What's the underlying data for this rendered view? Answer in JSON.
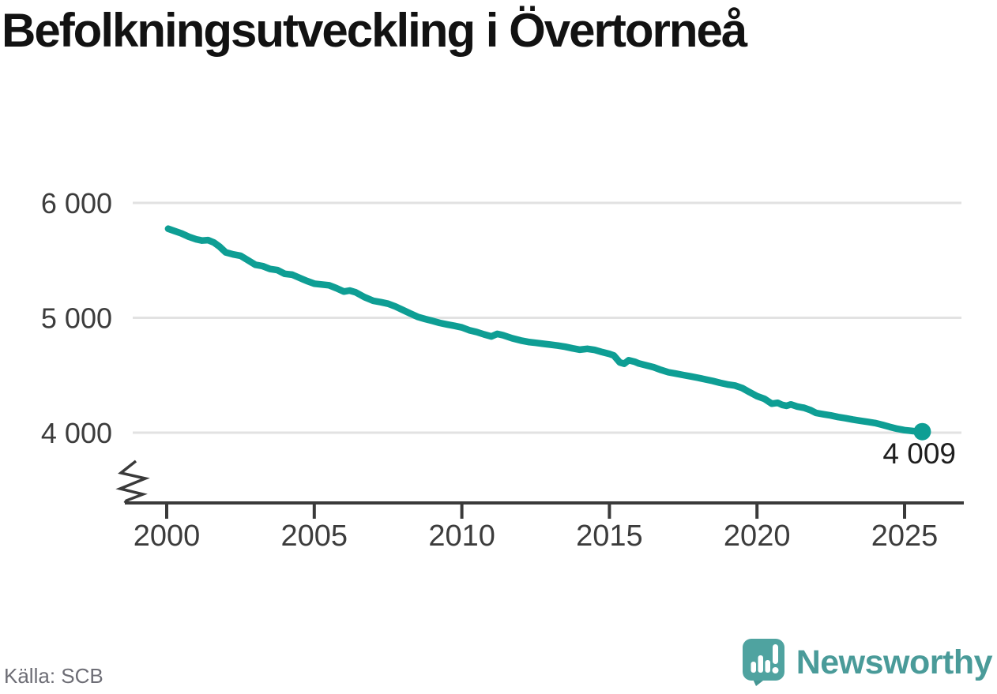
{
  "title": "Befolkningsutveckling i Övertorneå",
  "source_label": "Källa: SCB",
  "branding": {
    "wordmark": "Newsworthy",
    "icon": "newsworthy-speech-bubble-chart-icon",
    "icon_color": "#4FA3A0",
    "icon_tail_color": "#459693",
    "wordmark_color": "#4A9B99"
  },
  "chart_data": {
    "type": "line",
    "title": "Befolkningsutveckling i Övertorneå",
    "xlabel": "",
    "ylabel": "",
    "x_axis": {
      "ticks": [
        2000,
        2005,
        2010,
        2015,
        2020,
        2025
      ],
      "labels": [
        "2000",
        "2005",
        "2010",
        "2015",
        "2020",
        "2025"
      ]
    },
    "y_axis": {
      "ticks": [
        4000,
        5000,
        6000
      ],
      "labels": [
        "4 000",
        "5 000",
        "6 000"
      ],
      "axis_break": true
    },
    "grid": "horizontal",
    "legend": "none",
    "line_color": "#0E9E94",
    "axis_color": "#3A3A3A",
    "grid_color": "#E2E2E2",
    "tick_label_color": "#3C3C3C",
    "annotation_color": "#1E1E1E",
    "end_annotation": {
      "label": "4 009",
      "value": 4009,
      "x": 2025.6
    },
    "series": [
      {
        "name": "Befolkning",
        "points": [
          [
            2000.05,
            5775
          ],
          [
            2000.25,
            5757
          ],
          [
            2000.5,
            5735
          ],
          [
            2000.75,
            5705
          ],
          [
            2001.0,
            5683
          ],
          [
            2001.2,
            5672
          ],
          [
            2001.4,
            5676
          ],
          [
            2001.6,
            5655
          ],
          [
            2001.8,
            5618
          ],
          [
            2002.0,
            5570
          ],
          [
            2002.25,
            5552
          ],
          [
            2002.5,
            5540
          ],
          [
            2002.75,
            5502
          ],
          [
            2003.0,
            5462
          ],
          [
            2003.25,
            5450
          ],
          [
            2003.5,
            5425
          ],
          [
            2003.75,
            5415
          ],
          [
            2004.0,
            5383
          ],
          [
            2004.25,
            5375
          ],
          [
            2004.5,
            5348
          ],
          [
            2004.75,
            5320
          ],
          [
            2005.0,
            5297
          ],
          [
            2005.25,
            5290
          ],
          [
            2005.5,
            5283
          ],
          [
            2005.75,
            5258
          ],
          [
            2006.0,
            5228
          ],
          [
            2006.2,
            5237
          ],
          [
            2006.4,
            5222
          ],
          [
            2006.7,
            5180
          ],
          [
            2007.0,
            5148
          ],
          [
            2007.25,
            5136
          ],
          [
            2007.5,
            5122
          ],
          [
            2007.75,
            5098
          ],
          [
            2008.0,
            5068
          ],
          [
            2008.25,
            5038
          ],
          [
            2008.5,
            5008
          ],
          [
            2008.75,
            4990
          ],
          [
            2009.0,
            4973
          ],
          [
            2009.25,
            4955
          ],
          [
            2009.5,
            4942
          ],
          [
            2009.75,
            4930
          ],
          [
            2010.0,
            4916
          ],
          [
            2010.25,
            4892
          ],
          [
            2010.5,
            4876
          ],
          [
            2010.75,
            4856
          ],
          [
            2011.0,
            4838
          ],
          [
            2011.2,
            4860
          ],
          [
            2011.4,
            4848
          ],
          [
            2011.7,
            4822
          ],
          [
            2012.0,
            4802
          ],
          [
            2012.25,
            4790
          ],
          [
            2012.5,
            4782
          ],
          [
            2012.75,
            4774
          ],
          [
            2013.0,
            4766
          ],
          [
            2013.25,
            4758
          ],
          [
            2013.5,
            4748
          ],
          [
            2013.75,
            4734
          ],
          [
            2014.0,
            4722
          ],
          [
            2014.25,
            4730
          ],
          [
            2014.5,
            4720
          ],
          [
            2014.75,
            4702
          ],
          [
            2015.0,
            4686
          ],
          [
            2015.15,
            4672
          ],
          [
            2015.35,
            4612
          ],
          [
            2015.5,
            4600
          ],
          [
            2015.65,
            4630
          ],
          [
            2015.85,
            4618
          ],
          [
            2016.0,
            4602
          ],
          [
            2016.25,
            4586
          ],
          [
            2016.5,
            4570
          ],
          [
            2016.75,
            4546
          ],
          [
            2017.0,
            4526
          ],
          [
            2017.25,
            4514
          ],
          [
            2017.5,
            4502
          ],
          [
            2017.75,
            4490
          ],
          [
            2018.0,
            4478
          ],
          [
            2018.25,
            4464
          ],
          [
            2018.5,
            4450
          ],
          [
            2018.75,
            4434
          ],
          [
            2019.0,
            4420
          ],
          [
            2019.25,
            4410
          ],
          [
            2019.5,
            4388
          ],
          [
            2019.75,
            4352
          ],
          [
            2020.0,
            4318
          ],
          [
            2020.25,
            4295
          ],
          [
            2020.5,
            4252
          ],
          [
            2020.7,
            4260
          ],
          [
            2020.85,
            4242
          ],
          [
            2021.0,
            4234
          ],
          [
            2021.15,
            4246
          ],
          [
            2021.35,
            4228
          ],
          [
            2021.6,
            4216
          ],
          [
            2021.8,
            4198
          ],
          [
            2022.0,
            4172
          ],
          [
            2022.25,
            4160
          ],
          [
            2022.5,
            4150
          ],
          [
            2022.75,
            4136
          ],
          [
            2023.0,
            4126
          ],
          [
            2023.25,
            4114
          ],
          [
            2023.5,
            4104
          ],
          [
            2023.75,
            4094
          ],
          [
            2024.0,
            4084
          ],
          [
            2024.25,
            4068
          ],
          [
            2024.5,
            4050
          ],
          [
            2024.75,
            4034
          ],
          [
            2025.0,
            4022
          ],
          [
            2025.3,
            4014
          ],
          [
            2025.6,
            4009
          ]
        ]
      }
    ]
  }
}
